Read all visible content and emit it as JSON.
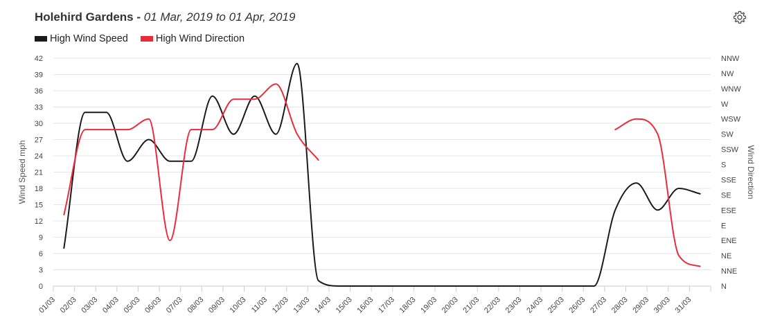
{
  "header": {
    "station": "Holehird Gardens",
    "separator": " - ",
    "range": "01 Mar, 2019 to 01 Apr, 2019"
  },
  "icons": {
    "settings": "gear-icon"
  },
  "legend": [
    {
      "label": "High Wind Speed",
      "color": "#1a1a1a"
    },
    {
      "label": "High Wind Direction",
      "color": "#ee2a3a"
    }
  ],
  "chart_data": {
    "type": "line",
    "x": [
      "01/03",
      "02/03",
      "03/03",
      "04/03",
      "05/03",
      "06/03",
      "07/03",
      "08/03",
      "09/03",
      "10/03",
      "11/03",
      "12/03",
      "13/03",
      "14/03",
      "15/03",
      "16/03",
      "17/03",
      "18/03",
      "19/03",
      "20/03",
      "21/03",
      "22/03",
      "23/03",
      "24/03",
      "25/03",
      "26/03",
      "27/03",
      "28/03",
      "29/03",
      "30/03",
      "31/03"
    ],
    "series": [
      {
        "name": "High Wind Speed",
        "axis": "left",
        "color": "#1a1a1a",
        "points": [
          [
            0.5,
            7
          ],
          [
            1.5,
            32
          ],
          [
            2.5,
            32
          ],
          [
            3.5,
            23
          ],
          [
            4.5,
            27
          ],
          [
            5.5,
            23
          ],
          [
            6.5,
            23
          ],
          [
            7.5,
            35
          ],
          [
            8.5,
            28
          ],
          [
            9.5,
            35
          ],
          [
            10.5,
            28
          ],
          [
            11.5,
            41
          ],
          [
            12.5,
            1
          ],
          [
            13.5,
            0
          ],
          [
            14.5,
            0
          ],
          [
            15.5,
            0
          ],
          [
            16.5,
            0
          ],
          [
            17.5,
            0
          ],
          [
            18.5,
            0
          ],
          [
            19.5,
            0
          ],
          [
            20.5,
            0
          ],
          [
            21.5,
            0
          ],
          [
            22.5,
            0
          ],
          [
            23.5,
            0
          ],
          [
            24.5,
            0
          ],
          [
            25.5,
            0
          ],
          [
            26.5,
            14
          ],
          [
            27.5,
            19
          ],
          [
            28.5,
            14
          ],
          [
            29.5,
            18
          ],
          [
            30.5,
            17
          ]
        ]
      },
      {
        "name": "High Wind Direction",
        "axis": "right",
        "color": "#ee2a3a",
        "segments": [
          [
            [
              0.5,
              4.7
            ],
            [
              1.5,
              10.3
            ],
            [
              2.5,
              10.3
            ],
            [
              3.5,
              10.3
            ],
            [
              4.5,
              11.0
            ],
            [
              5.5,
              3.0
            ],
            [
              6.5,
              10.3
            ],
            [
              7.5,
              10.3
            ],
            [
              8.5,
              12.3
            ],
            [
              9.5,
              12.3
            ],
            [
              10.5,
              13.3
            ],
            [
              11.5,
              10.0
            ],
            [
              12.5,
              8.3
            ]
          ],
          [
            [
              26.5,
              10.3
            ],
            [
              27.5,
              11.0
            ],
            [
              28.5,
              10.0
            ],
            [
              29.5,
              2.0
            ],
            [
              30.5,
              1.3
            ]
          ]
        ]
      }
    ],
    "y_left": {
      "label": "Wind Speed mph",
      "range": [
        0,
        42
      ],
      "ticks": [
        "0",
        "3",
        "6",
        "9",
        "12",
        "15",
        "18",
        "21",
        "24",
        "27",
        "30",
        "33",
        "36",
        "39",
        "42"
      ]
    },
    "y_right": {
      "label": "Wind Direction",
      "ticks": [
        "N",
        "NNE",
        "NE",
        "ENE",
        "E",
        "ESE",
        "SE",
        "SSE",
        "S",
        "SSW",
        "SW",
        "WSW",
        "W",
        "WNW",
        "NW",
        "NNW"
      ]
    },
    "grid": true
  }
}
